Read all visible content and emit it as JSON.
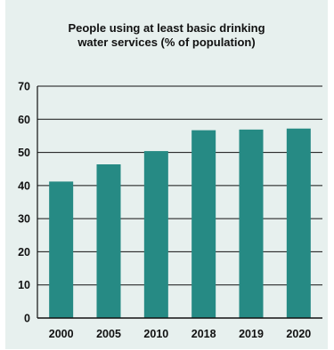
{
  "chart_data": {
    "type": "bar",
    "title": "People using at least basic drinking\nwater services (% of population)",
    "categories": [
      "2000",
      "2005",
      "2010",
      "2018",
      "2019",
      "2020"
    ],
    "values": [
      41.2,
      46.4,
      50.4,
      56.7,
      56.9,
      57.2
    ],
    "xlabel": "",
    "ylabel": "",
    "ylim": [
      0,
      70
    ],
    "yticks": [
      0,
      10,
      20,
      30,
      40,
      50,
      60,
      70
    ],
    "grid": true,
    "legend": "none",
    "colors": {
      "bar": "#268a84",
      "background": "#e7f0ee",
      "gridline": "#111111"
    }
  }
}
